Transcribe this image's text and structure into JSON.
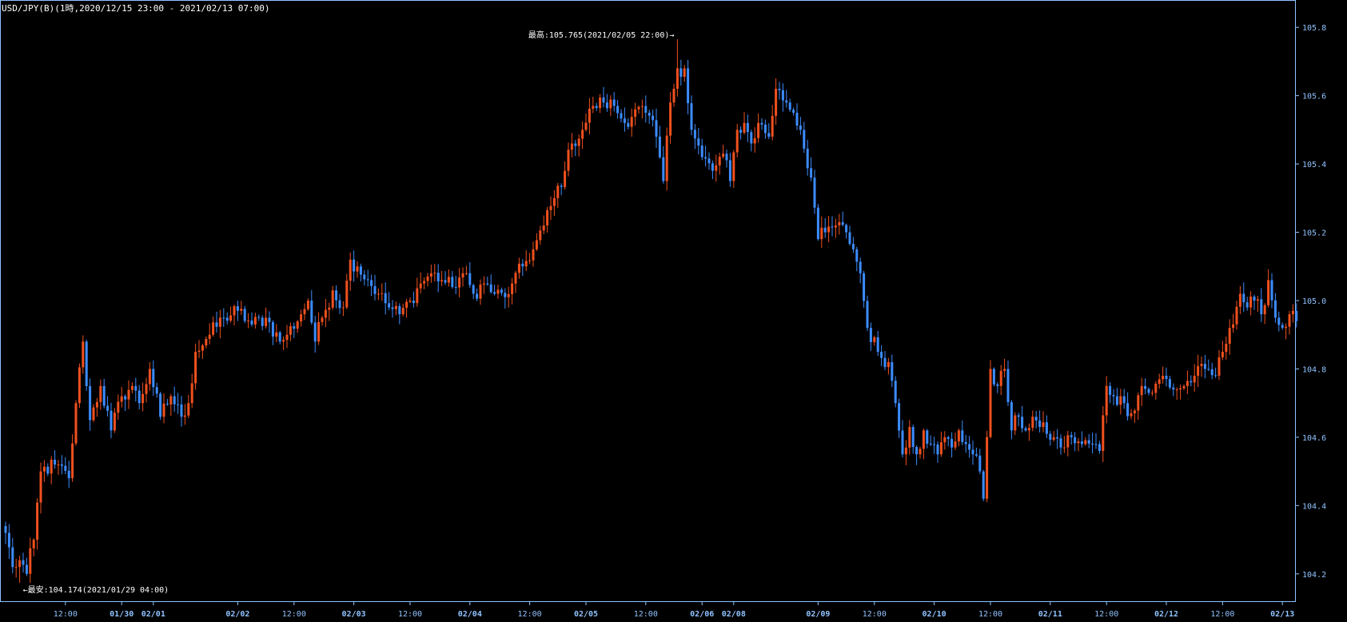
{
  "chart_data": {
    "type": "candlestick",
    "title": "USD/JPY(B)(1時,2020/12/15 23:00 - 2021/02/13 07:00)",
    "ylim": [
      104.12,
      105.88
    ],
    "yticks": [
      "104.2",
      "104.4",
      "104.6",
      "104.8",
      "105.0",
      "105.2",
      "105.4",
      "105.6",
      "105.8"
    ],
    "xticks": [
      {
        "label": "12:00",
        "i": 17,
        "day": false
      },
      {
        "label": "01/30",
        "i": 33,
        "day": true
      },
      {
        "label": "02/01",
        "i": 42,
        "day": true
      },
      {
        "label": "02/02",
        "i": 66,
        "day": true
      },
      {
        "label": "12:00",
        "i": 82,
        "day": false
      },
      {
        "label": "02/03",
        "i": 99,
        "day": true
      },
      {
        "label": "12:00",
        "i": 115,
        "day": false
      },
      {
        "label": "02/04",
        "i": 132,
        "day": true
      },
      {
        "label": "12:00",
        "i": 149,
        "day": false
      },
      {
        "label": "02/05",
        "i": 165,
        "day": true
      },
      {
        "label": "12:00",
        "i": 182,
        "day": false
      },
      {
        "label": "02/06",
        "i": 198,
        "day": true
      },
      {
        "label": "02/08",
        "i": 207,
        "day": true
      },
      {
        "label": "02/09",
        "i": 231,
        "day": true
      },
      {
        "label": "12:00",
        "i": 247,
        "day": false
      },
      {
        "label": "02/10",
        "i": 264,
        "day": true
      },
      {
        "label": "12:00",
        "i": 280,
        "day": false
      },
      {
        "label": "02/11",
        "i": 297,
        "day": true
      },
      {
        "label": "12:00",
        "i": 313,
        "day": false
      },
      {
        "label": "02/12",
        "i": 330,
        "day": true
      },
      {
        "label": "12:00",
        "i": 346,
        "day": false
      },
      {
        "label": "02/13",
        "i": 363,
        "day": true
      }
    ],
    "anchors": [
      [
        0,
        104.32
      ],
      [
        2,
        104.22
      ],
      [
        4,
        104.24
      ],
      [
        6,
        104.2
      ],
      [
        8,
        104.3
      ],
      [
        10,
        104.5
      ],
      [
        14,
        104.52
      ],
      [
        18,
        104.48
      ],
      [
        20,
        104.7
      ],
      [
        22,
        104.88
      ],
      [
        24,
        104.65
      ],
      [
        27,
        104.75
      ],
      [
        30,
        104.62
      ],
      [
        33,
        104.72
      ],
      [
        36,
        104.75
      ],
      [
        38,
        104.7
      ],
      [
        41,
        104.8
      ],
      [
        44,
        104.66
      ],
      [
        47,
        104.72
      ],
      [
        50,
        104.66
      ],
      [
        52,
        104.7
      ],
      [
        54,
        104.85
      ],
      [
        58,
        104.9
      ],
      [
        62,
        104.95
      ],
      [
        66,
        104.97
      ],
      [
        70,
        104.93
      ],
      [
        74,
        104.95
      ],
      [
        78,
        104.88
      ],
      [
        80,
        104.9
      ],
      [
        84,
        104.96
      ],
      [
        86,
        105.0
      ],
      [
        88,
        104.88
      ],
      [
        90,
        104.95
      ],
      [
        93,
        105.03
      ],
      [
        96,
        104.98
      ],
      [
        98,
        105.12
      ],
      [
        100,
        105.1
      ],
      [
        103,
        105.06
      ],
      [
        106,
        105.02
      ],
      [
        109,
        104.98
      ],
      [
        112,
        104.96
      ],
      [
        115,
        105.0
      ],
      [
        118,
        105.05
      ],
      [
        121,
        105.08
      ],
      [
        124,
        105.06
      ],
      [
        127,
        105.04
      ],
      [
        130,
        105.08
      ],
      [
        133,
        105.02
      ],
      [
        136,
        105.05
      ],
      [
        139,
        105.02
      ],
      [
        142,
        105.01
      ],
      [
        144,
        105.05
      ],
      [
        147,
        105.1
      ],
      [
        150,
        105.15
      ],
      [
        153,
        105.22
      ],
      [
        156,
        105.3
      ],
      [
        159,
        105.38
      ],
      [
        161,
        105.46
      ],
      [
        164,
        105.5
      ],
      [
        167,
        105.57
      ],
      [
        170,
        105.58
      ],
      [
        173,
        105.57
      ],
      [
        176,
        105.52
      ],
      [
        179,
        105.56
      ],
      [
        182,
        105.55
      ],
      [
        185,
        105.48
      ],
      [
        187,
        105.35
      ],
      [
        189,
        105.58
      ],
      [
        191,
        105.68
      ],
      [
        193,
        105.68
      ],
      [
        195,
        105.5
      ],
      [
        198,
        105.42
      ],
      [
        201,
        105.38
      ],
      [
        204,
        105.43
      ],
      [
        206,
        105.35
      ],
      [
        208,
        105.5
      ],
      [
        210,
        105.52
      ],
      [
        212,
        105.46
      ],
      [
        214,
        105.52
      ],
      [
        217,
        105.48
      ],
      [
        219,
        105.62
      ],
      [
        222,
        105.58
      ],
      [
        224,
        105.55
      ],
      [
        226,
        105.5
      ],
      [
        229,
        105.36
      ],
      [
        231,
        105.18
      ],
      [
        233,
        105.2
      ],
      [
        236,
        105.22
      ],
      [
        239,
        105.2
      ],
      [
        241,
        105.15
      ],
      [
        243,
        105.08
      ],
      [
        245,
        104.92
      ],
      [
        248,
        104.85
      ],
      [
        251,
        104.82
      ],
      [
        253,
        104.7
      ],
      [
        255,
        104.55
      ],
      [
        257,
        104.63
      ],
      [
        259,
        104.55
      ],
      [
        261,
        104.62
      ],
      [
        263,
        104.58
      ],
      [
        265,
        104.55
      ],
      [
        267,
        104.6
      ],
      [
        269,
        104.57
      ],
      [
        271,
        104.62
      ],
      [
        273,
        104.58
      ],
      [
        275,
        104.55
      ],
      [
        277,
        104.5
      ],
      [
        278,
        104.42
      ],
      [
        280,
        104.8
      ],
      [
        282,
        104.75
      ],
      [
        284,
        104.8
      ],
      [
        286,
        104.62
      ],
      [
        288,
        104.66
      ],
      [
        290,
        104.62
      ],
      [
        292,
        104.66
      ],
      [
        294,
        104.63
      ],
      [
        296,
        104.61
      ],
      [
        298,
        104.6
      ],
      [
        300,
        104.57
      ],
      [
        303,
        104.6
      ],
      [
        306,
        104.58
      ],
      [
        309,
        104.58
      ],
      [
        311,
        104.56
      ],
      [
        313,
        104.75
      ],
      [
        315,
        104.72
      ],
      [
        318,
        104.7
      ],
      [
        320,
        104.67
      ],
      [
        323,
        104.75
      ],
      [
        326,
        104.73
      ],
      [
        329,
        104.78
      ],
      [
        332,
        104.74
      ],
      [
        335,
        104.75
      ],
      [
        338,
        104.78
      ],
      [
        341,
        104.8
      ],
      [
        344,
        104.78
      ],
      [
        346,
        104.85
      ],
      [
        348,
        104.92
      ],
      [
        351,
        105.02
      ],
      [
        353,
        104.98
      ],
      [
        355,
        105.0
      ],
      [
        357,
        104.96
      ],
      [
        359,
        105.06
      ],
      [
        361,
        104.95
      ],
      [
        363,
        104.92
      ],
      [
        365,
        104.96
      ],
      [
        367,
        104.94
      ]
    ],
    "high": {
      "index": 191,
      "value": 105.765,
      "label": "最高:105.765(2021/02/05 22:00)→"
    },
    "low": {
      "index": 4,
      "value": 104.174,
      "label": "←最安:104.174(2021/01/29 04:00)"
    },
    "colors": {
      "up": "#f0501e",
      "down": "#3c8cff",
      "axis": "#8fc3ff",
      "bg": "#000000",
      "title": "#ffffff"
    }
  }
}
